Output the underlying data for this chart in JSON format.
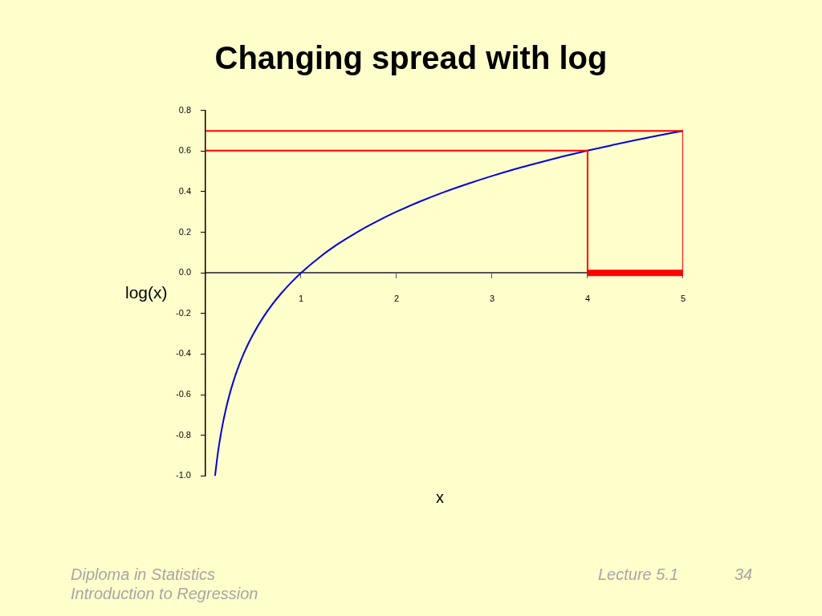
{
  "chart_data": {
    "type": "line",
    "title": "Changing spread with log",
    "xlabel": "x",
    "ylabel": "log(x)",
    "xlim": [
      0,
      5
    ],
    "xticks": [
      1,
      2,
      3,
      4,
      5
    ],
    "ylim": [
      -1.0,
      0.8
    ],
    "yticks": [
      {
        "value": -1.0,
        "label": "-1.0"
      },
      -0.8,
      -0.6,
      -0.4,
      -0.2,
      {
        "value": 0,
        "label": "0.0"
      },
      0.2,
      0.4,
      0.6,
      0.8
    ],
    "legend": false,
    "series": [
      {
        "color": "#ff0000",
        "x": [
          0,
          5,
          5
        ],
        "values": [
          0.699,
          0.699,
          0
        ]
      },
      {
        "color": "#ff0000",
        "x": [
          0,
          4,
          4
        ],
        "values": [
          0.602,
          0.602,
          0
        ]
      },
      {
        "color": "#0000dd",
        "x": [
          0.1,
          0.12,
          0.14,
          0.16,
          0.18,
          0.2,
          0.25,
          0.3,
          0.35,
          0.4,
          0.45,
          0.5,
          0.6,
          0.7,
          0.8,
          0.9,
          1.0,
          1.2,
          1.4,
          1.6,
          1.8,
          2.0,
          2.25,
          2.5,
          2.75,
          3.0,
          3.25,
          3.5,
          3.75,
          4.0,
          4.25,
          4.5,
          4.75,
          5.0
        ],
        "values": [
          -1.0,
          -0.921,
          -0.854,
          -0.796,
          -0.745,
          -0.699,
          -0.602,
          -0.523,
          -0.456,
          -0.398,
          -0.347,
          -0.301,
          -0.222,
          -0.155,
          -0.097,
          -0.046,
          0,
          0.079,
          0.146,
          0.204,
          0.255,
          0.301,
          0.352,
          0.398,
          0.439,
          0.477,
          0.512,
          0.544,
          0.574,
          0.602,
          0.628,
          0.653,
          0.677,
          0.699
        ]
      },
      {
        "color": "#ff0000",
        "x": [
          4,
          5
        ],
        "values": [
          0,
          0
        ]
      }
    ],
    "annotations": [
      "Diploma in Statistics",
      "Introduction to Regression",
      "Lecture 5.1",
      "34"
    ]
  }
}
